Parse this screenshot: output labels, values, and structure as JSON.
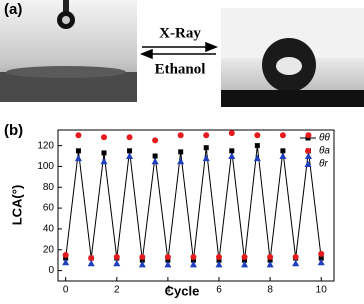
{
  "panel_a": {
    "label": "(a)",
    "top_text": "X-Ray",
    "bottom_text": "Ethanol"
  },
  "chart_data": {
    "type": "line",
    "panel_label": "(b)",
    "x_label": "Cycle",
    "y_label": "LCA(°)",
    "x": [
      0,
      0.5,
      1,
      1.5,
      2,
      2.5,
      3,
      3.5,
      4,
      4.5,
      5,
      5.5,
      6,
      6.5,
      7,
      7.5,
      8,
      8.5,
      9,
      9.5,
      10
    ],
    "series": [
      {
        "name": "θθ",
        "color": "#000000",
        "marker": "square",
        "line": true,
        "values": [
          12,
          115,
          12,
          113,
          12,
          115,
          10,
          110,
          10,
          114,
          10,
          118,
          10,
          115,
          10,
          120,
          10,
          115,
          12,
          115,
          12
        ]
      },
      {
        "name": "θa",
        "color": "#e41a1c",
        "marker": "circle",
        "line": false,
        "values": [
          15,
          130,
          12,
          128,
          13,
          128,
          13,
          125,
          13,
          130,
          13,
          130,
          13,
          132,
          13,
          130,
          13,
          130,
          13,
          130,
          16
        ]
      },
      {
        "name": "θr",
        "color": "#1f3fbf",
        "marker": "triangle",
        "line": false,
        "values": [
          8,
          108,
          7,
          105,
          7,
          110,
          6,
          105,
          6,
          105,
          6,
          108,
          6,
          110,
          6,
          108,
          6,
          110,
          7,
          110,
          8
        ]
      }
    ],
    "xlim": [
      -0.3,
      10.5
    ],
    "ylim": [
      -10,
      135
    ],
    "xticks": [
      0,
      2,
      4,
      6,
      8,
      10
    ],
    "yticks": [
      0,
      20,
      40,
      60,
      80,
      100,
      120
    ],
    "legend": "upper right"
  }
}
